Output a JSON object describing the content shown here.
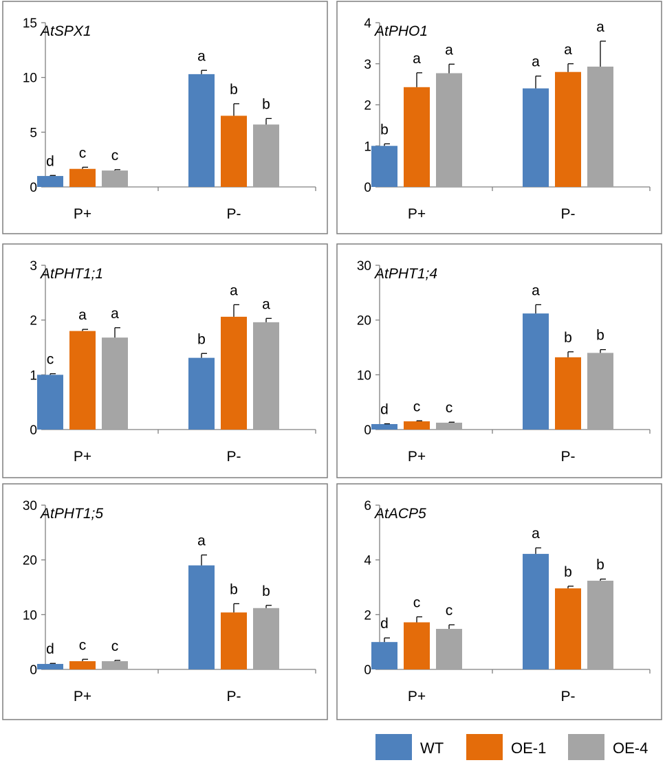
{
  "figure": {
    "legend": [
      {
        "name": "WT",
        "color": "#4e81bd"
      },
      {
        "name": "OE-1",
        "color": "#e46c0a"
      },
      {
        "name": "OE-4",
        "color": "#a5a5a5"
      }
    ]
  },
  "chart_data": [
    {
      "type": "bar",
      "title": "AtSPX1",
      "categories": [
        "P+",
        "P-"
      ],
      "ylim": [
        0,
        15
      ],
      "yticks": [
        "0",
        "5",
        "10",
        "15"
      ],
      "series": [
        {
          "name": "WT",
          "values": [
            1.0,
            10.3
          ],
          "errors": [
            0.05,
            0.35
          ],
          "letters": [
            "d",
            "a"
          ]
        },
        {
          "name": "OE-1",
          "values": [
            1.65,
            6.5
          ],
          "errors": [
            0.15,
            1.1
          ],
          "letters": [
            "c",
            "b"
          ]
        },
        {
          "name": "OE-4",
          "values": [
            1.5,
            5.7
          ],
          "errors": [
            0.08,
            0.55
          ],
          "letters": [
            "c",
            "b"
          ]
        }
      ]
    },
    {
      "type": "bar",
      "title": "AtPHO1",
      "categories": [
        "P+",
        "P-"
      ],
      "ylim": [
        0,
        4
      ],
      "yticks": [
        "0",
        "1",
        "2",
        "3",
        "4"
      ],
      "series": [
        {
          "name": "WT",
          "values": [
            1.0,
            2.4
          ],
          "errors": [
            0.05,
            0.3
          ],
          "letters": [
            "b",
            "a"
          ]
        },
        {
          "name": "OE-1",
          "values": [
            2.43,
            2.8
          ],
          "errors": [
            0.35,
            0.2
          ],
          "letters": [
            "a",
            "a"
          ]
        },
        {
          "name": "OE-4",
          "values": [
            2.77,
            2.93
          ],
          "errors": [
            0.22,
            0.62
          ],
          "letters": [
            "a",
            "a"
          ]
        }
      ]
    },
    {
      "type": "bar",
      "title": "AtPHT1;1",
      "categories": [
        "P+",
        "P-"
      ],
      "ylim": [
        0,
        3
      ],
      "yticks": [
        "0",
        "1",
        "2",
        "3"
      ],
      "series": [
        {
          "name": "WT",
          "values": [
            1.0,
            1.31
          ],
          "errors": [
            0.02,
            0.08
          ],
          "letters": [
            "c",
            "b"
          ]
        },
        {
          "name": "OE-1",
          "values": [
            1.8,
            2.06
          ],
          "errors": [
            0.03,
            0.22
          ],
          "letters": [
            "a",
            "a"
          ]
        },
        {
          "name": "OE-4",
          "values": [
            1.68,
            1.96
          ],
          "errors": [
            0.18,
            0.07
          ],
          "letters": [
            "a",
            "a"
          ]
        }
      ]
    },
    {
      "type": "bar",
      "title": "AtPHT1;4",
      "categories": [
        "P+",
        "P-"
      ],
      "ylim": [
        0,
        30
      ],
      "yticks": [
        "0",
        "10",
        "20",
        "30"
      ],
      "series": [
        {
          "name": "WT",
          "values": [
            1.0,
            21.2
          ],
          "errors": [
            0.05,
            1.6
          ],
          "letters": [
            "d",
            "a"
          ]
        },
        {
          "name": "OE-1",
          "values": [
            1.5,
            13.2
          ],
          "errors": [
            0.1,
            1.0
          ],
          "letters": [
            "c",
            "b"
          ]
        },
        {
          "name": "OE-4",
          "values": [
            1.25,
            14.0
          ],
          "errors": [
            0.1,
            0.6
          ],
          "letters": [
            "c",
            "b"
          ]
        }
      ]
    },
    {
      "type": "bar",
      "title": "AtPHT1;5",
      "categories": [
        "P+",
        "P-"
      ],
      "ylim": [
        0,
        30
      ],
      "yticks": [
        "0",
        "10",
        "20",
        "30"
      ],
      "series": [
        {
          "name": "WT",
          "values": [
            1.0,
            19.0
          ],
          "errors": [
            0.1,
            1.9
          ],
          "letters": [
            "d",
            "a"
          ]
        },
        {
          "name": "OE-1",
          "values": [
            1.5,
            10.4
          ],
          "errors": [
            0.35,
            1.6
          ],
          "letters": [
            "c",
            "b"
          ]
        },
        {
          "name": "OE-4",
          "values": [
            1.5,
            11.2
          ],
          "errors": [
            0.15,
            0.5
          ],
          "letters": [
            "c",
            "b"
          ]
        }
      ]
    },
    {
      "type": "bar",
      "title": "AtACP5",
      "categories": [
        "P+",
        "P-"
      ],
      "ylim": [
        0,
        6
      ],
      "yticks": [
        "0",
        "2",
        "4",
        "6"
      ],
      "series": [
        {
          "name": "WT",
          "values": [
            1.0,
            4.22
          ],
          "errors": [
            0.15,
            0.22
          ],
          "letters": [
            "d",
            "a"
          ]
        },
        {
          "name": "OE-1",
          "values": [
            1.72,
            2.96
          ],
          "errors": [
            0.2,
            0.08
          ],
          "letters": [
            "c",
            "b"
          ]
        },
        {
          "name": "OE-4",
          "values": [
            1.48,
            3.24
          ],
          "errors": [
            0.15,
            0.06
          ],
          "letters": [
            "c",
            "b"
          ]
        }
      ]
    }
  ]
}
